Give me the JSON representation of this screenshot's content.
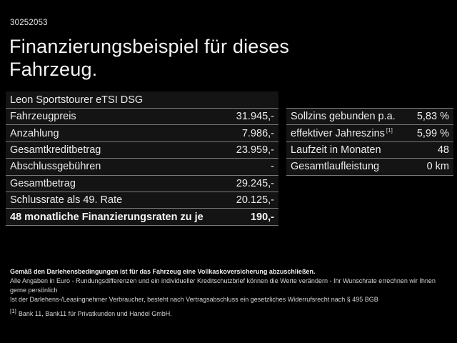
{
  "page": {
    "doc_id": "30252053",
    "title": "Finanzierungsbeispiel für dieses Fahrzeug.",
    "vehicle_model": "Leon Sportstourer eTSI DSG"
  },
  "colors": {
    "background": "#000000",
    "text": "#f0f0f0",
    "row_background": "#141414",
    "separator": "#787878"
  },
  "financing_table": {
    "rows": [
      {
        "label": "Fahrzeugpreis",
        "value": "31.945,-"
      },
      {
        "label": "Anzahlung",
        "value": "7.986,-"
      },
      {
        "label": "Gesamtkreditbetrag",
        "value": "23.959,-"
      },
      {
        "label": "Abschlussgebühren",
        "value": "-"
      },
      {
        "label": "Gesamtbetrag",
        "value": "29.245,-"
      },
      {
        "label": "Schlussrate als 49. Rate",
        "value": "20.125,-"
      },
      {
        "label": "48 monatliche Finanzierungsraten zu je",
        "value": "190,-"
      }
    ]
  },
  "conditions_table": {
    "rows": [
      {
        "label": "Sollzins gebunden p.a.",
        "value": "5,83 %"
      },
      {
        "label": "effektiver Jahreszins",
        "footnote_marker": "[1]",
        "value": "5,99 %"
      },
      {
        "label": "Laufzeit in Monaten",
        "value": "48"
      },
      {
        "label": "Gesamtlaufleistung",
        "value": "0 km"
      }
    ]
  },
  "fine_print": {
    "line1": "Gemäß den Darlehensbedingungen ist für das Fahrzeug eine Vollkaskoversicherung abzuschließen.",
    "line2": "Alle Angaben in Euro - Rundungsdifferenzen und ein individueller Kreditschutzbrief können die Werte verändern - Ihr Wunschrate errechnen wir Ihnen gerne persönlich",
    "line3": "Ist der Darlehens-/Leasingnehmer Verbraucher, besteht nach Vertragsabschluss ein gesetzliches Widerrufsrecht nach § 495 BGB",
    "footnote_marker": "[1]",
    "footnote_text": "Bank 11, Bank11 für Privatkunden und Handel GmbH."
  }
}
